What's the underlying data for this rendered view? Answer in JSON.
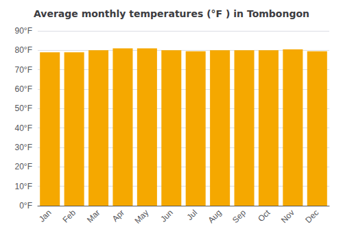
{
  "chart_data": {
    "type": "bar",
    "title": "Average monthly temperatures (°F ) in Tombongon",
    "categories": [
      "Jan",
      "Feb",
      "Mar",
      "Apr",
      "May",
      "Jun",
      "Jul",
      "Aug",
      "Sep",
      "Oct",
      "Nov",
      "Dec"
    ],
    "values": [
      79,
      79,
      80,
      81,
      81,
      80,
      79.5,
      80,
      80,
      80,
      80.5,
      79.5
    ],
    "color": "#F5A800",
    "ylim": [
      0,
      90
    ],
    "yticks": [
      {
        "value": 0,
        "label": "0°F"
      },
      {
        "value": 10,
        "label": "10°F"
      },
      {
        "value": 20,
        "label": "20°F"
      },
      {
        "value": 30,
        "label": "30°F"
      },
      {
        "value": 40,
        "label": "40°F"
      },
      {
        "value": 50,
        "label": "50°F"
      },
      {
        "value": 60,
        "label": "60°F"
      },
      {
        "value": 70,
        "label": "70°F"
      },
      {
        "value": 80,
        "label": "80°F"
      },
      {
        "value": 90,
        "label": "90°F"
      }
    ],
    "grid": true
  }
}
